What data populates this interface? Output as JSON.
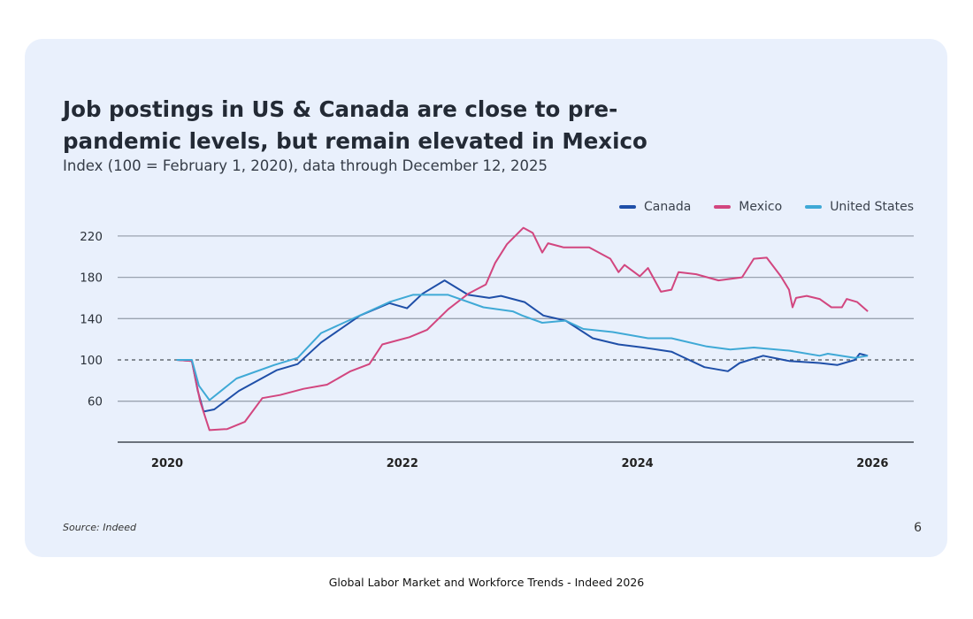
{
  "card": {
    "title": "Job postings in US & Canada are close to pre-pandemic levels, but remain elevated in Mexico",
    "subtitle": "Index (100 = February 1, 2020), data through December 12, 2025",
    "source": "Source: Indeed",
    "page_number": "6"
  },
  "footer": {
    "caption": "Global Labor Market and Workforce Trends - Indeed 2026"
  },
  "chart_data": {
    "type": "line",
    "title": "Job postings in US & Canada are close to pre-pandemic levels, but remain elevated in Mexico",
    "subtitle": "Index (100 = February 1, 2020), data through December 12, 2025",
    "xlabel": "",
    "ylabel": "",
    "xlim": [
      2019.6,
      2026.4
    ],
    "ylim": [
      20,
      240
    ],
    "x_ticks": [
      "2020",
      "2022",
      "2024",
      "2026"
    ],
    "x_tick_values": [
      2020,
      2022,
      2024,
      2026
    ],
    "y_ticks": [
      60,
      100,
      140,
      180,
      220
    ],
    "grid": "horizontal",
    "reference_line": {
      "value": 100,
      "style": "dashed"
    },
    "legend_position": "top-right",
    "series": [
      {
        "name": "Canada",
        "color": "#1f4fa8",
        "points": [
          [
            2020.08,
            100
          ],
          [
            2020.21,
            99
          ],
          [
            2020.26,
            70
          ],
          [
            2020.31,
            50
          ],
          [
            2020.4,
            52
          ],
          [
            2020.61,
            70
          ],
          [
            2020.93,
            90
          ],
          [
            2021.11,
            96
          ],
          [
            2021.31,
            117
          ],
          [
            2021.64,
            143
          ],
          [
            2021.89,
            155
          ],
          [
            2022.04,
            150
          ],
          [
            2022.17,
            164
          ],
          [
            2022.36,
            177
          ],
          [
            2022.56,
            163
          ],
          [
            2022.74,
            160
          ],
          [
            2022.84,
            162
          ],
          [
            2023.04,
            156
          ],
          [
            2023.2,
            143
          ],
          [
            2023.39,
            138
          ],
          [
            2023.62,
            121
          ],
          [
            2023.84,
            115
          ],
          [
            2024.05,
            112
          ],
          [
            2024.29,
            108
          ],
          [
            2024.57,
            93
          ],
          [
            2024.77,
            89
          ],
          [
            2024.87,
            97
          ],
          [
            2025.07,
            104
          ],
          [
            2025.29,
            99
          ],
          [
            2025.55,
            97
          ],
          [
            2025.7,
            95
          ],
          [
            2025.85,
            100
          ],
          [
            2025.89,
            106
          ],
          [
            2025.96,
            104
          ]
        ]
      },
      {
        "name": "Mexico",
        "color": "#d2467f",
        "points": [
          [
            2020.08,
            100
          ],
          [
            2020.21,
            99
          ],
          [
            2020.28,
            60
          ],
          [
            2020.36,
            32
          ],
          [
            2020.51,
            33
          ],
          [
            2020.66,
            40
          ],
          [
            2020.81,
            63
          ],
          [
            2020.96,
            66
          ],
          [
            2021.16,
            72
          ],
          [
            2021.36,
            76
          ],
          [
            2021.56,
            89
          ],
          [
            2021.72,
            96
          ],
          [
            2021.83,
            115
          ],
          [
            2022.06,
            122
          ],
          [
            2022.21,
            129
          ],
          [
            2022.39,
            149
          ],
          [
            2022.56,
            164
          ],
          [
            2022.71,
            173
          ],
          [
            2022.79,
            194
          ],
          [
            2022.89,
            212
          ],
          [
            2023.03,
            228
          ],
          [
            2023.11,
            223
          ],
          [
            2023.19,
            204
          ],
          [
            2023.24,
            213
          ],
          [
            2023.37,
            209
          ],
          [
            2023.59,
            209
          ],
          [
            2023.77,
            198
          ],
          [
            2023.84,
            185
          ],
          [
            2023.89,
            192
          ],
          [
            2024.02,
            181
          ],
          [
            2024.09,
            189
          ],
          [
            2024.2,
            166
          ],
          [
            2024.29,
            168
          ],
          [
            2024.35,
            185
          ],
          [
            2024.5,
            183
          ],
          [
            2024.69,
            177
          ],
          [
            2024.89,
            180
          ],
          [
            2024.99,
            198
          ],
          [
            2025.1,
            199
          ],
          [
            2025.22,
            181
          ],
          [
            2025.29,
            168
          ],
          [
            2025.32,
            151
          ],
          [
            2025.35,
            160
          ],
          [
            2025.44,
            162
          ],
          [
            2025.55,
            159
          ],
          [
            2025.65,
            151
          ],
          [
            2025.74,
            151
          ],
          [
            2025.78,
            159
          ],
          [
            2025.87,
            156
          ],
          [
            2025.96,
            147
          ]
        ]
      },
      {
        "name": "United States",
        "color": "#3fa9d6",
        "points": [
          [
            2020.08,
            100
          ],
          [
            2020.21,
            100
          ],
          [
            2020.27,
            75
          ],
          [
            2020.36,
            61
          ],
          [
            2020.59,
            82
          ],
          [
            2020.91,
            95
          ],
          [
            2021.11,
            102
          ],
          [
            2021.31,
            126
          ],
          [
            2021.56,
            139
          ],
          [
            2021.89,
            156
          ],
          [
            2022.09,
            163
          ],
          [
            2022.39,
            163
          ],
          [
            2022.69,
            151
          ],
          [
            2022.94,
            147
          ],
          [
            2023.02,
            143
          ],
          [
            2023.19,
            136
          ],
          [
            2023.39,
            138
          ],
          [
            2023.54,
            130
          ],
          [
            2023.79,
            127
          ],
          [
            2024.09,
            121
          ],
          [
            2024.29,
            121
          ],
          [
            2024.59,
            113
          ],
          [
            2024.79,
            110
          ],
          [
            2024.99,
            112
          ],
          [
            2025.29,
            109
          ],
          [
            2025.55,
            104
          ],
          [
            2025.62,
            106
          ],
          [
            2025.85,
            102
          ],
          [
            2025.96,
            104
          ]
        ]
      }
    ]
  }
}
